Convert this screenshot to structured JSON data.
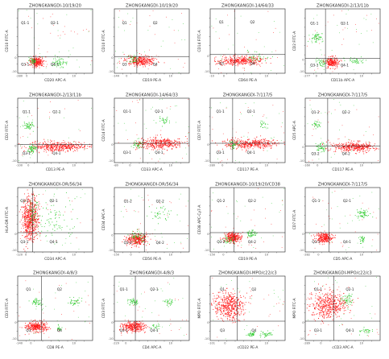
{
  "colors": {
    "red": "#ff1a1a",
    "green": "#33cc33",
    "axis": "#333333",
    "frame": "#222222"
  },
  "panels": [
    {
      "title": "ZHONGKANGDI-10/19/20",
      "ylabel": "CD10 FITC-A",
      "xlabel": "CD20 APC-A",
      "quadrants": [
        "Q1-1",
        "Q2-1",
        "Q3-1",
        "Q4-1"
      ],
      "yticks": [
        "-10",
        "0"
      ],
      "xticks": [
        "-280",
        "0",
        "10"
      ]
    },
    {
      "title": "ZHONGKANGDI-10/19/20",
      "ylabel": "CD10 FITC-A",
      "xlabel": "CD19 PE-A",
      "quadrants": [
        "Q1",
        "Q2",
        "Q3",
        "Q4"
      ],
      "yticks": [
        "-10",
        "0"
      ],
      "xticks": [
        "-144",
        "0",
        "10"
      ]
    },
    {
      "title": "ZHONGKANGDI-14/64/33",
      "ylabel": "CD14 FITC-A",
      "xlabel": "CD64 PE-A",
      "quadrants": [
        "Q1",
        "Q2",
        "Q3",
        "Q4"
      ],
      "yticks": [
        "-10",
        "0"
      ],
      "xticks": [
        "-10",
        "0",
        "10"
      ]
    },
    {
      "title": "ZHONGKANGDI-2/13/11b",
      "ylabel": "CD2 FITC-A",
      "xlabel": "CD11b APC-A",
      "quadrants": [
        "Q1-1",
        "Q2-1",
        "Q3-1",
        "Q4-1"
      ],
      "yticks": [
        "-10",
        "0"
      ],
      "xticks": [
        "-277",
        "0",
        "10"
      ]
    },
    {
      "title": "ZHONGKANGDI-2/13/11b",
      "ylabel": "CD2 FITC-A",
      "xlabel": "CD13 PE-A",
      "quadrants": [
        "Q1-1",
        "Q2-1",
        "Q3-1",
        "Q4-1"
      ],
      "yticks": [
        "-10",
        "0"
      ],
      "xticks": [
        "-100",
        "0",
        "10"
      ]
    },
    {
      "title": "ZHONGKANGDI-14/64/33",
      "ylabel": "CD14 FITC-A",
      "xlabel": "CD33 APC-A",
      "quadrants": [
        "Q1-1",
        "Q2-1",
        "Q3-1",
        "Q4-1"
      ],
      "yticks": [
        "-10",
        "0"
      ],
      "xticks": [
        "-80",
        "0",
        "10"
      ]
    },
    {
      "title": "ZHONGKANGDI-7/117/5",
      "ylabel": "CD7 FITC-A",
      "xlabel": "CD117 PE-A",
      "quadrants": [
        "Q1-1",
        "Q2-1",
        "Q3-1",
        "Q4-1"
      ],
      "yticks": [
        "-10",
        "0"
      ],
      "xticks": [
        "-280",
        "0",
        "10"
      ]
    },
    {
      "title": "ZHONGKANGDI-7/117/5",
      "ylabel": "CD5 APC-A",
      "xlabel": "CD117 PE-A",
      "quadrants": [
        "Q1-2",
        "Q2-2",
        "Q3-2",
        "Q4-2"
      ],
      "yticks": [
        "-10",
        "0"
      ],
      "xticks": [
        "-160",
        "0",
        "10"
      ]
    },
    {
      "title": "ZHONGKANGDI-DR/56/34",
      "ylabel": "HLA-DR FITC-A",
      "xlabel": "CD34 APC-A",
      "quadrants": [
        "Q1-1",
        "Q2-1",
        "Q3-1",
        "Q4-1"
      ],
      "yticks": [
        "-10",
        "0"
      ],
      "xticks": [
        "-120",
        "0",
        "10"
      ]
    },
    {
      "title": "ZHONGKANGDI-DR/56/34",
      "ylabel": "CD34 APC-A",
      "xlabel": "CD56 PE-A",
      "quadrants": [
        "Q1-2",
        "Q2-2",
        "Q3-2",
        "Q4-2"
      ],
      "yticks": [
        "-10",
        "0"
      ],
      "xticks": [
        "-150",
        "0",
        "10"
      ]
    },
    {
      "title": "ZHONGKANGDI-10/19/20/CD38",
      "ylabel": "CD38 APC-Cy7-A",
      "xlabel": "CD19 PE-A",
      "quadrants": [
        "Q1-2",
        "Q2-2",
        "Q3-2",
        "Q4-2"
      ],
      "yticks": [
        "-10",
        "0"
      ],
      "xticks": [
        "-150",
        "0",
        "10"
      ]
    },
    {
      "title": "ZHONGKANGDI-7/117/5",
      "ylabel": "CD7 FITC-A",
      "xlabel": "CD5 APC-A",
      "quadrants": [
        "Q1-1",
        "Q2-1",
        "Q3-1",
        "Q4-1"
      ],
      "yticks": [
        "-10",
        "0"
      ],
      "xticks": [
        "-282",
        "0",
        "10"
      ]
    },
    {
      "title": "ZHONGKANGDI-4/8/3",
      "ylabel": "CD3 FITC-A",
      "xlabel": "CD8 PE-A",
      "quadrants": [
        "Q1",
        "Q2",
        "Q3",
        "Q4"
      ],
      "yticks": [
        "-10",
        "0"
      ],
      "xticks": [
        "-140",
        "0",
        "10"
      ]
    },
    {
      "title": "ZHONGKANGDI-4/8/3",
      "ylabel": "CD3 FITC-A",
      "xlabel": "CD4 APC-A",
      "quadrants": [
        "Q1-1",
        "Q2-1",
        "Q3-1",
        "Q4-1"
      ],
      "yticks": [
        "-10",
        "0"
      ],
      "xticks": [
        "-229",
        "0",
        "10"
      ]
    },
    {
      "title": "ZHONGKANGDI-MPO/c22/c3",
      "ylabel": "MPO FITC-A",
      "xlabel": "cCD22 PE-A",
      "quadrants": [
        "Q1",
        "Q2",
        "Q3",
        "Q4"
      ],
      "yticks": [
        "-10",
        "0"
      ],
      "xticks": [
        "-101",
        "0",
        "10"
      ]
    },
    {
      "title": "ZHONGKANGDI-MPO/c22/c3",
      "ylabel": "MPO FITC-A",
      "xlabel": "cCD3 APC-A",
      "quadrants": [
        "Q1-1",
        "Q2-1",
        "Q3-1",
        "Q4-1"
      ],
      "yticks": [
        "-10",
        "0"
      ],
      "xticks": [
        "-289",
        "0",
        "10"
      ]
    }
  ]
}
